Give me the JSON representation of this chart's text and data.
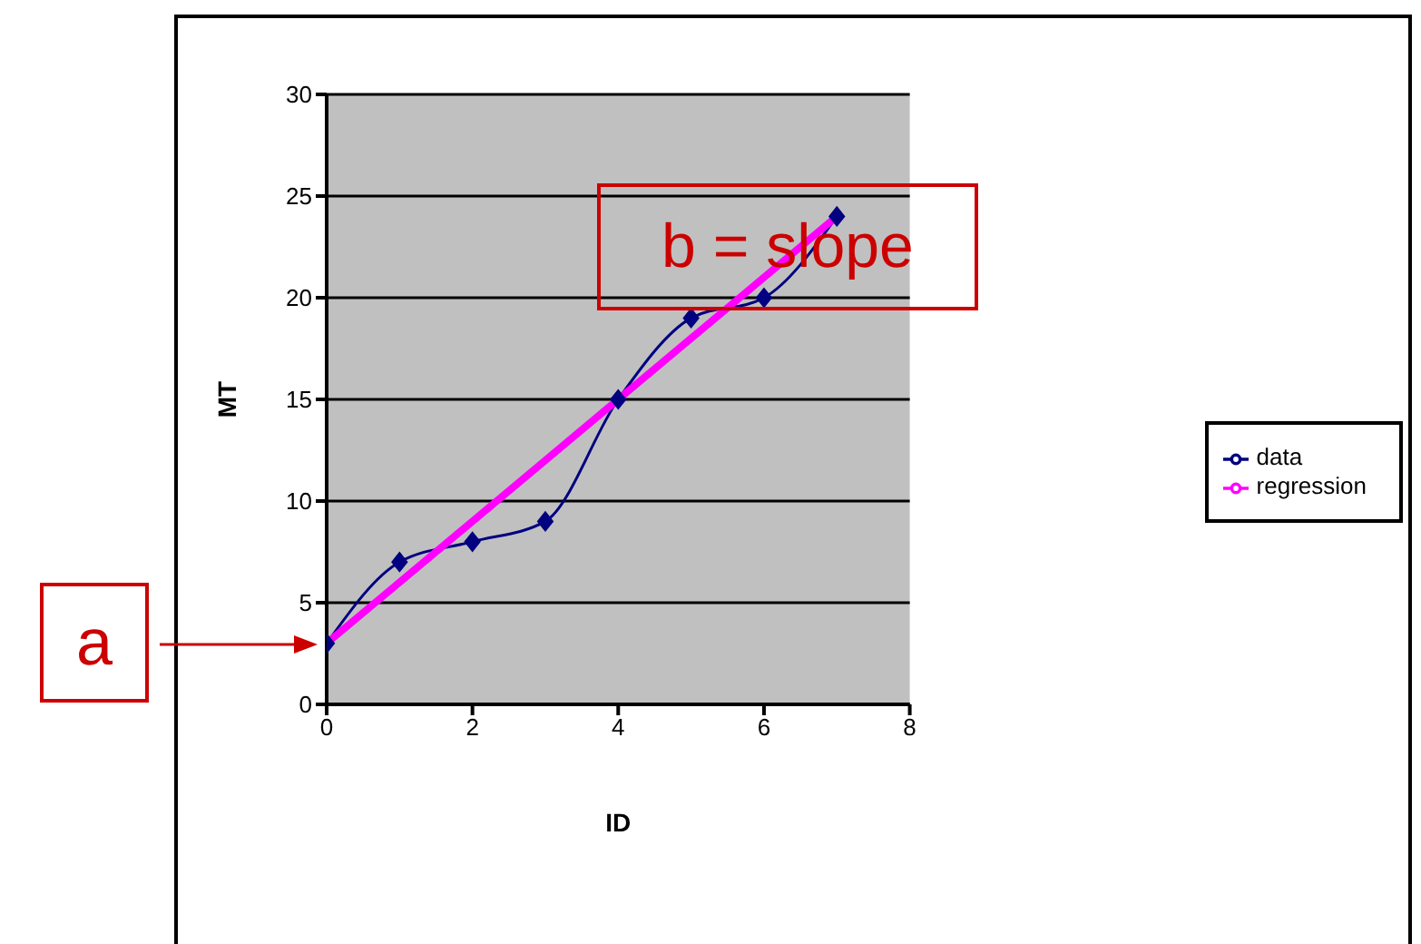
{
  "chart_data": {
    "type": "line",
    "xlabel": "ID",
    "ylabel": "MT",
    "x": [
      0,
      1,
      2,
      3,
      4,
      5,
      6,
      7
    ],
    "series": [
      {
        "name": "data",
        "color": "#000080",
        "marker": "diamond",
        "values": [
          3,
          7,
          8,
          9,
          15,
          19,
          20,
          24
        ]
      },
      {
        "name": "regression",
        "color": "#ff00ff",
        "marker": "none",
        "x": [
          0,
          7
        ],
        "values": [
          3,
          24
        ]
      }
    ],
    "xlim": [
      0,
      8
    ],
    "xticks": [
      0,
      2,
      4,
      6,
      8
    ],
    "ylim": [
      0,
      30
    ],
    "yticks": [
      0,
      5,
      10,
      15,
      20,
      25,
      30
    ],
    "grid": "y",
    "legend": "right",
    "annotations": [
      "a",
      "b = slope"
    ]
  }
}
